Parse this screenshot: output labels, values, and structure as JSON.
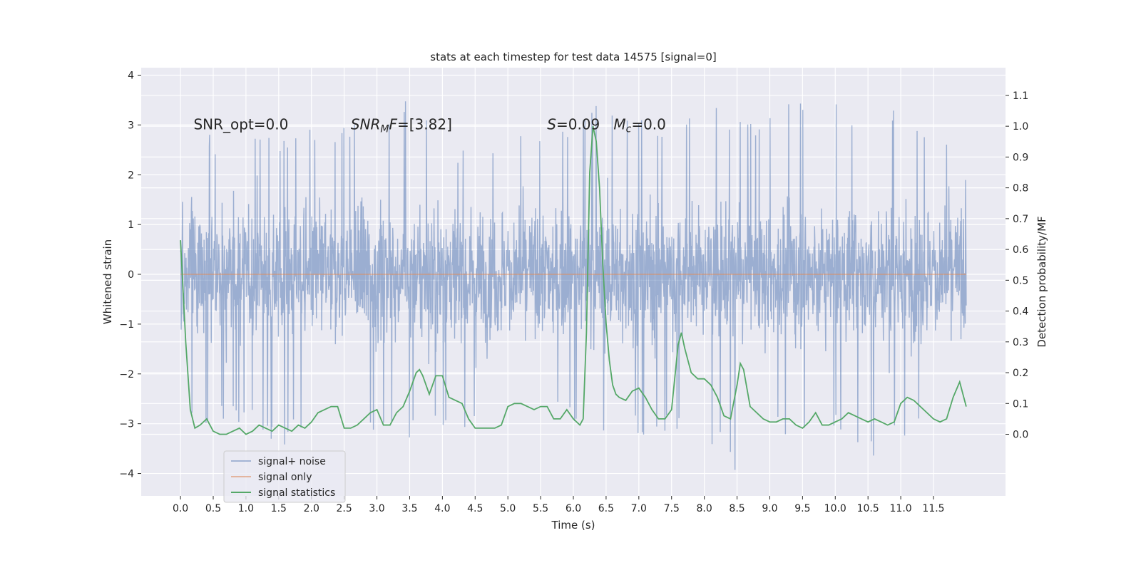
{
  "chart_data": {
    "type": "line",
    "title": "stats at each timestep for test data 14575 [signal=0]",
    "xlabel": "Time (s)",
    "ylabel": "Whitened strain",
    "ylabel_right": "Detection probability/MF",
    "xlim": [
      -0.6,
      12.6
    ],
    "ylim": [
      -4.45,
      4.15
    ],
    "ylim_right": [
      -0.2,
      1.19
    ],
    "x_ticks": [
      0.0,
      0.5,
      1.0,
      1.5,
      2.0,
      2.5,
      3.0,
      3.5,
      4.0,
      4.5,
      5.0,
      5.5,
      6.0,
      6.5,
      7.0,
      7.5,
      8.0,
      8.5,
      9.0,
      9.5,
      10.0,
      10.5,
      11.0,
      11.5
    ],
    "x_tick_labels": [
      "0.0",
      "0.5",
      "1.0",
      "1.5",
      "2.0",
      "2.5",
      "3.0",
      "3.5",
      "4.0",
      "4.5",
      "5.0",
      "5.5",
      "6.0",
      "6.5",
      "7.0",
      "7.5",
      "8.0",
      "8.5",
      "9.0",
      "9.5",
      "10.0",
      "10.5",
      "11.0",
      "11.5"
    ],
    "y_ticks": [
      -4,
      -3,
      -2,
      -1,
      0,
      1,
      2,
      3,
      4
    ],
    "y_tick_labels": [
      "−4",
      "−3",
      "−2",
      "−1",
      "0",
      "1",
      "2",
      "3",
      "4"
    ],
    "y_right_ticks": [
      0.0,
      0.1,
      0.2,
      0.3,
      0.4,
      0.5,
      0.6,
      0.7,
      0.8,
      0.9,
      1.0,
      1.1
    ],
    "y_right_tick_labels": [
      "0.0",
      "0.1",
      "0.2",
      "0.3",
      "0.4",
      "0.5",
      "0.6",
      "0.7",
      "0.8",
      "0.9",
      "1.0",
      "1.1"
    ],
    "grid": true,
    "legend_position": "lower-left",
    "annotations": [
      {
        "x": 0.2,
        "y": 3.0,
        "parts": [
          {
            "t": "SNR_opt=0.0"
          }
        ]
      },
      {
        "x": 2.6,
        "y": 3.0,
        "parts": [
          {
            "t": "SNR",
            "i": true
          },
          {
            "t": "M",
            "i": true,
            "sub": true
          },
          {
            "t": "F",
            "i": true
          },
          {
            "t": "=[3.82]"
          }
        ]
      },
      {
        "x": 5.6,
        "y": 3.0,
        "parts": [
          {
            "t": "S",
            "i": true
          },
          {
            "t": "=0.09   "
          },
          {
            "t": "M",
            "i": true
          },
          {
            "t": "c",
            "i": true,
            "sub": true
          },
          {
            "t": "=0.0"
          }
        ]
      }
    ],
    "series": [
      {
        "name": "signal+ noise",
        "color": "#4c72b0",
        "style": "noise",
        "x_range": [
          0.0,
          12.0
        ],
        "envelope": {
          "x": [
            0,
            0.5,
            1.0,
            1.5,
            2.0,
            2.5,
            3.0,
            3.5,
            4.0,
            4.5,
            5.0,
            5.5,
            6.0,
            6.5,
            7.0,
            7.5,
            8.0,
            8.5,
            9.0,
            9.5,
            10.0,
            10.5,
            11.0,
            11.5,
            12.0
          ],
          "max": [
            3.5,
            2.8,
            2.9,
            2.9,
            3.0,
            3.1,
            3.3,
            3.6,
            3.0,
            2.7,
            2.9,
            3.0,
            3.1,
            3.6,
            3.2,
            3.0,
            3.5,
            3.1,
            3.4,
            3.8,
            3.5,
            3.4,
            3.3,
            3.2,
            2.1
          ],
          "min": [
            -3.1,
            -3.0,
            -3.1,
            -3.6,
            -3.1,
            -3.5,
            -3.1,
            -3.3,
            -3.3,
            -3.0,
            -3.2,
            -2.9,
            -3.1,
            -3.5,
            -3.3,
            -3.3,
            -3.2,
            -4.1,
            -3.1,
            -3.6,
            -3.1,
            -3.9,
            -3.4,
            -3.3,
            -2.3
          ]
        }
      },
      {
        "name": "signal only",
        "color": "#dd8452",
        "style": "line",
        "axis": "left",
        "x": [
          0.0,
          12.0
        ],
        "y": [
          0.0,
          0.0
        ]
      },
      {
        "name": "signal statistics",
        "color": "#55a868",
        "style": "line",
        "axis": "right",
        "x": [
          0.0,
          0.08,
          0.15,
          0.22,
          0.3,
          0.4,
          0.5,
          0.6,
          0.7,
          0.8,
          0.9,
          1.0,
          1.1,
          1.2,
          1.3,
          1.4,
          1.5,
          1.6,
          1.7,
          1.8,
          1.9,
          2.0,
          2.1,
          2.2,
          2.3,
          2.4,
          2.5,
          2.6,
          2.7,
          2.8,
          2.9,
          3.0,
          3.1,
          3.2,
          3.3,
          3.4,
          3.5,
          3.6,
          3.65,
          3.7,
          3.8,
          3.9,
          4.0,
          4.1,
          4.2,
          4.3,
          4.4,
          4.5,
          4.6,
          4.7,
          4.8,
          4.9,
          5.0,
          5.1,
          5.2,
          5.3,
          5.4,
          5.5,
          5.6,
          5.7,
          5.8,
          5.9,
          6.0,
          6.1,
          6.15,
          6.2,
          6.25,
          6.3,
          6.35,
          6.4,
          6.45,
          6.5,
          6.55,
          6.6,
          6.65,
          6.7,
          6.8,
          6.9,
          7.0,
          7.1,
          7.2,
          7.3,
          7.4,
          7.5,
          7.6,
          7.65,
          7.7,
          7.8,
          7.9,
          8.0,
          8.1,
          8.2,
          8.3,
          8.4,
          8.5,
          8.55,
          8.6,
          8.7,
          8.8,
          8.9,
          9.0,
          9.1,
          9.2,
          9.3,
          9.4,
          9.5,
          9.6,
          9.7,
          9.8,
          9.9,
          10.0,
          10.1,
          10.2,
          10.3,
          10.4,
          10.5,
          10.6,
          10.7,
          10.8,
          10.9,
          11.0,
          11.1,
          11.2,
          11.3,
          11.4,
          11.5,
          11.6,
          11.7,
          11.8,
          11.9,
          12.0
        ],
        "y": [
          0.63,
          0.3,
          0.08,
          0.02,
          0.03,
          0.05,
          0.01,
          0.0,
          0.0,
          0.01,
          0.02,
          0.0,
          0.01,
          0.03,
          0.02,
          0.01,
          0.03,
          0.02,
          0.01,
          0.03,
          0.02,
          0.04,
          0.07,
          0.08,
          0.09,
          0.09,
          0.02,
          0.02,
          0.03,
          0.05,
          0.07,
          0.08,
          0.03,
          0.03,
          0.07,
          0.09,
          0.14,
          0.2,
          0.21,
          0.19,
          0.13,
          0.19,
          0.19,
          0.12,
          0.11,
          0.1,
          0.05,
          0.02,
          0.02,
          0.02,
          0.02,
          0.03,
          0.09,
          0.1,
          0.1,
          0.09,
          0.08,
          0.09,
          0.09,
          0.05,
          0.05,
          0.08,
          0.05,
          0.03,
          0.05,
          0.33,
          0.85,
          1.0,
          0.95,
          0.8,
          0.55,
          0.36,
          0.24,
          0.16,
          0.13,
          0.12,
          0.11,
          0.14,
          0.15,
          0.12,
          0.08,
          0.05,
          0.05,
          0.08,
          0.29,
          0.33,
          0.28,
          0.2,
          0.18,
          0.18,
          0.16,
          0.12,
          0.06,
          0.05,
          0.16,
          0.23,
          0.21,
          0.09,
          0.07,
          0.05,
          0.04,
          0.04,
          0.05,
          0.05,
          0.03,
          0.02,
          0.04,
          0.07,
          0.03,
          0.03,
          0.04,
          0.05,
          0.07,
          0.06,
          0.05,
          0.04,
          0.05,
          0.04,
          0.03,
          0.04,
          0.1,
          0.12,
          0.11,
          0.09,
          0.07,
          0.05,
          0.04,
          0.05,
          0.12,
          0.17,
          0.09
        ]
      }
    ]
  }
}
